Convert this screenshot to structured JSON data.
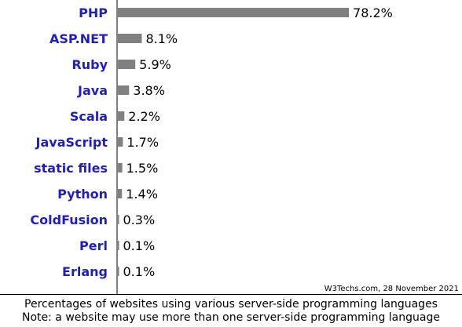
{
  "chart_data": {
    "type": "bar",
    "orientation": "horizontal",
    "categories": [
      "PHP",
      "ASP.NET",
      "Ruby",
      "Java",
      "Scala",
      "JavaScript",
      "static files",
      "Python",
      "ColdFusion",
      "Perl",
      "Erlang"
    ],
    "values": [
      78.2,
      8.1,
      5.9,
      3.8,
      2.2,
      1.7,
      1.5,
      1.4,
      0.3,
      0.1,
      0.1
    ],
    "value_labels": [
      "78.2%",
      "8.1%",
      "5.9%",
      "3.8%",
      "2.2%",
      "1.7%",
      "1.5%",
      "1.4%",
      "0.3%",
      "0.1%",
      "0.1%"
    ],
    "xlim": [
      0,
      100
    ],
    "grid": false,
    "legend": "none",
    "colors": {
      "bar": "#808080",
      "category_label": "#1e1ec8",
      "axis": "#000000"
    }
  },
  "source_credit": "W3Techs.com, 28 November 2021",
  "footer": {
    "line1": "Percentages of websites using various server-side programming languages",
    "line2": "Note: a website may use more than one server-side programming language"
  }
}
